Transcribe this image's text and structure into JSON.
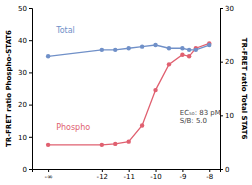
{
  "chart_data": {
    "type": "line",
    "x": [
      -14,
      -12,
      -11.5,
      -11,
      -10.5,
      -10,
      -9.5,
      -9,
      -8.75,
      -8.5,
      -8
    ],
    "series": [
      {
        "name": "Phospho",
        "color": "#e06070",
        "marker": "circle",
        "values": [
          7.5,
          7.5,
          7.8,
          8.5,
          13.5,
          24.5,
          32.5,
          35.5,
          35.0,
          37.5,
          39.0
        ]
      },
      {
        "name": "Total",
        "color": "#7090c8",
        "marker": "circle",
        "axis": "y2",
        "values": [
          21.0,
          22.2,
          22.2,
          22.5,
          22.8,
          23.1,
          22.5,
          22.5,
          22.2,
          22.2,
          23.1
        ]
      }
    ],
    "xlim": [
      -14.6,
      -7.6
    ],
    "xticks": [
      {
        "value": -14,
        "label": "-∞"
      },
      -12,
      -11,
      -10,
      -9,
      -8
    ],
    "ylim": [
      0,
      50
    ],
    "yticks": [
      0,
      10,
      20,
      30,
      40,
      50
    ],
    "y2lim": [
      0,
      30
    ],
    "y2ticks": [
      0,
      10,
      20,
      30
    ],
    "ylabel": "TR-FRET ratio Phospho-STAT6",
    "y2label": "TR-FRET ratio Total STAT6",
    "annotations": [
      {
        "text": "Total",
        "x": -13.7,
        "y": 43,
        "color": "#7090c8"
      },
      {
        "text": "Phospho",
        "x": -13.7,
        "y": 13,
        "color": "#e06070"
      },
      {
        "text": "EC₅₀: 83 pM\nS/B: 5.0",
        "x": -9.1,
        "y": 16,
        "color": "#444444"
      }
    ],
    "grid": false
  }
}
